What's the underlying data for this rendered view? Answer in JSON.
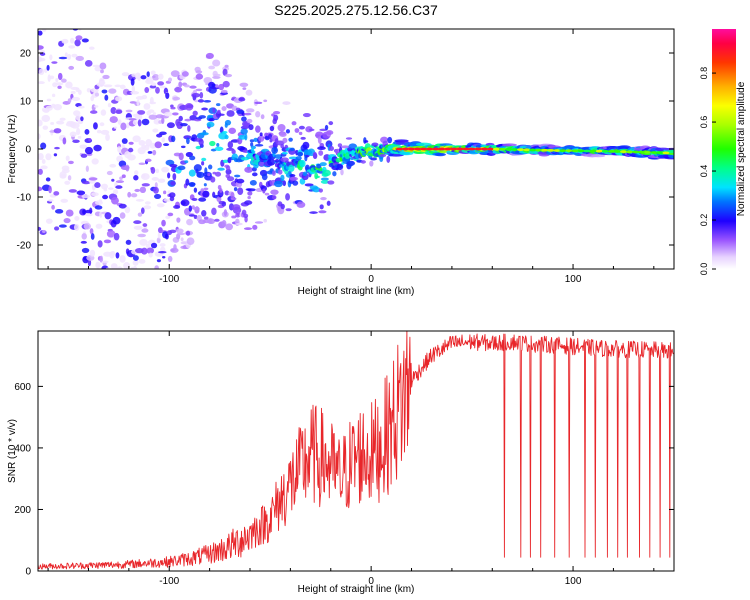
{
  "figure_title": "S225.2025.275.12.56.C37",
  "colors": {
    "axis": "#000000",
    "snr_line": "#e8262a",
    "background": "#ffffff"
  },
  "chart_data": [
    {
      "type": "heatmap",
      "title": "",
      "xlabel": "Height of straight line (km)",
      "ylabel": "Frequency (Hz)",
      "xlim": [
        -165,
        150
      ],
      "ylim": [
        -25,
        25
      ],
      "xticks": [
        -100,
        0,
        100
      ],
      "xtick_labels": [
        "-100",
        "0",
        "100"
      ],
      "yticks": [
        -20,
        -10,
        0,
        10,
        20
      ],
      "ytick_labels": [
        "-20",
        "-10",
        "0",
        "10",
        "20"
      ],
      "description_points": [
        {
          "x": -150,
          "freq": 10,
          "amp": 0.25
        },
        {
          "x": -130,
          "freq": -8,
          "amp": 0.22
        },
        {
          "x": -90,
          "freq": -3,
          "amp": 0.35
        },
        {
          "x": -80,
          "freq": 2,
          "amp": 0.45
        },
        {
          "x": -50,
          "freq": -3,
          "amp": 0.35
        },
        {
          "x": -25,
          "freq": -4,
          "amp": 0.5
        },
        {
          "x": -10,
          "freq": -1,
          "amp": 0.55
        },
        {
          "x": 10,
          "freq": 0,
          "amp": 0.7
        },
        {
          "x": 30,
          "freq": 0,
          "amp": 0.95
        },
        {
          "x": 60,
          "freq": 0,
          "amp": 0.75
        },
        {
          "x": 90,
          "freq": -0.3,
          "amp": 0.5
        },
        {
          "x": 120,
          "freq": -0.5,
          "amp": 0.6
        },
        {
          "x": 145,
          "freq": -0.8,
          "amp": 0.6
        }
      ],
      "colorbar": {
        "label": "Normalized spectral amplitude",
        "range": [
          0.0,
          0.98
        ],
        "ticks": [
          0.0,
          0.2,
          0.4,
          0.6,
          0.8
        ],
        "tick_labels": [
          "0.0",
          "0.2",
          "0.4",
          "0.6",
          "0.8"
        ]
      }
    },
    {
      "type": "line",
      "title": "",
      "xlabel": "Height of straight line (km)",
      "ylabel": "SNR (10 * v/v)",
      "xlim": [
        -165,
        150
      ],
      "ylim": [
        0,
        780
      ],
      "xticks": [
        -100,
        0,
        100
      ],
      "xtick_labels": [
        "-100",
        "0",
        "100"
      ],
      "yticks": [
        0,
        200,
        400,
        600
      ],
      "ytick_labels": [
        "0",
        "200",
        "400",
        "600"
      ],
      "series": [
        {
          "name": "SNR",
          "x": [
            -165,
            -140,
            -120,
            -100,
            -90,
            -80,
            -70,
            -60,
            -50,
            -45,
            -40,
            -35,
            -30,
            -25,
            -20,
            -15,
            -10,
            -5,
            0,
            5,
            10,
            15,
            20,
            25,
            30,
            40,
            50,
            60,
            70,
            80,
            90,
            100,
            110,
            120,
            130,
            140,
            150
          ],
          "values": [
            15,
            18,
            22,
            30,
            40,
            55,
            80,
            120,
            170,
            230,
            280,
            330,
            380,
            370,
            340,
            300,
            350,
            380,
            380,
            410,
            470,
            550,
            620,
            660,
            700,
            740,
            745,
            740,
            745,
            738,
            735,
            730,
            725,
            722,
            720,
            718,
            715
          ]
        }
      ],
      "dropouts": {
        "x": [
          66,
          74,
          79,
          84,
          91,
          98,
          106,
          111,
          117,
          122,
          127,
          133,
          138,
          143,
          148
        ],
        "min_value": 45
      }
    }
  ]
}
